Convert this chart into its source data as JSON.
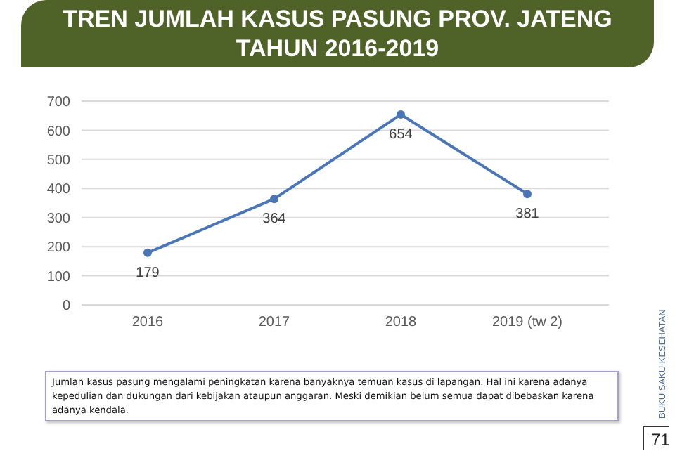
{
  "chart_data": {
    "type": "line",
    "title": "TREN JUMLAH KASUS PASUNG PROV. JATENG\nTAHUN 2016-2019",
    "categories": [
      "2016",
      "2017",
      "2018",
      "2019 (tw 2)"
    ],
    "series": [
      {
        "color": "#4a76b8",
        "values": [
          179,
          364,
          654,
          381
        ]
      }
    ],
    "ylim": [
      0,
      700
    ],
    "yticks": [
      0,
      100,
      200,
      300,
      400,
      500,
      600,
      700
    ],
    "grid": "y",
    "marker": "circle",
    "line_style": "solid",
    "data_labels": true,
    "legend": false,
    "annotations": [
      "Jumlah kasus pasung mengalami peningkatan karena banyaknya temuan kasus di lapangan. Hal ini karena adanya kepedulian dan dukungan dari kebijakan ataupun anggaran. Meski demikian belum semua dapat dibebaskan karena adanya kendala.",
      "BUKU SAKU KESEHATAN",
      "71"
    ]
  }
}
